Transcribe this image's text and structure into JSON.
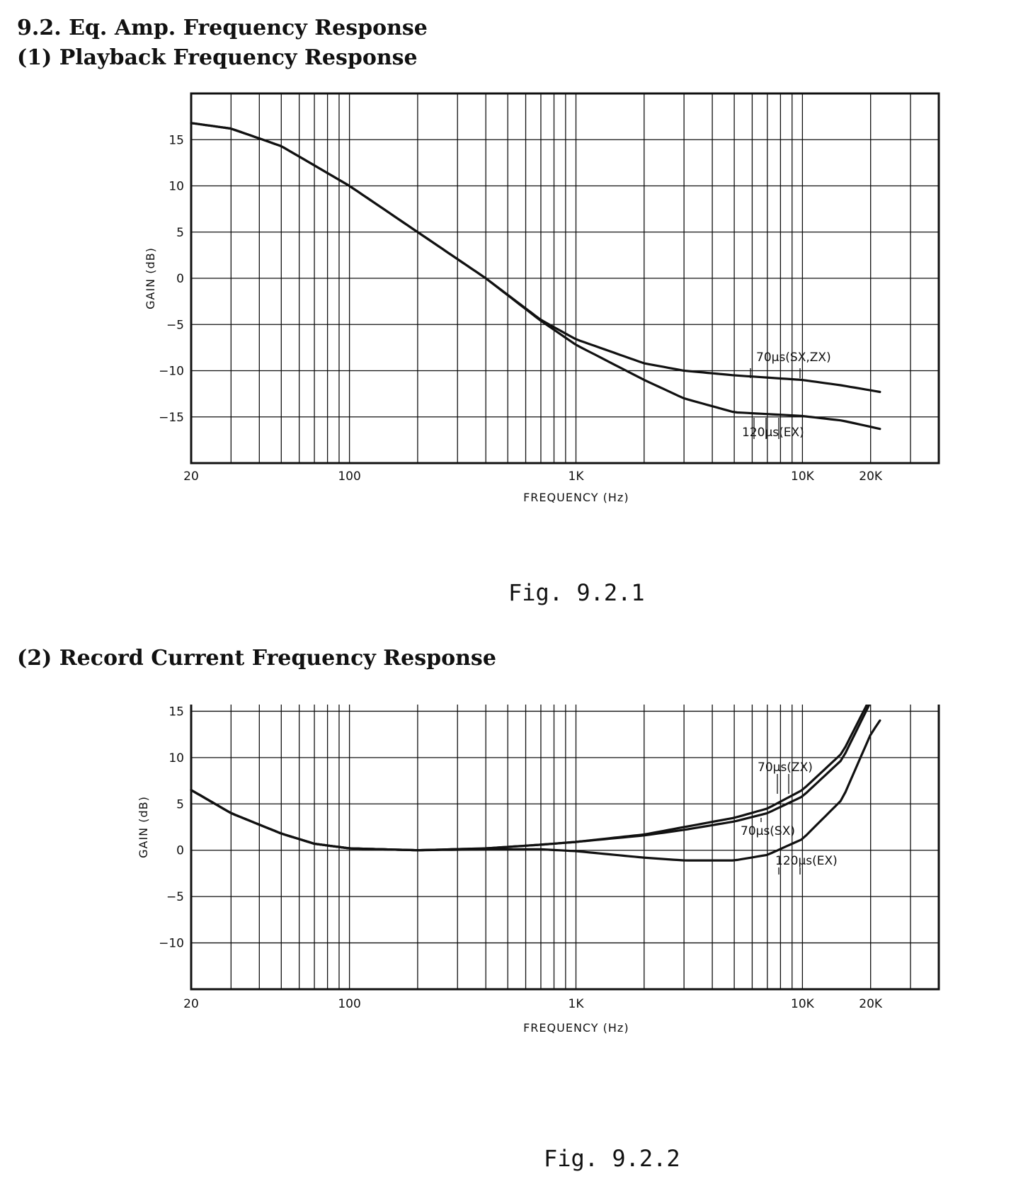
{
  "headings": {
    "section": "9.2. Eq. Amp. Frequency Response",
    "sub1": "(1) Playback Frequency Response",
    "sub2": "(2) Record Current Frequency Response"
  },
  "chart_data": [
    {
      "type": "line",
      "caption": "Fig. 9.2.1",
      "xlabel": "FREQUENCY (Hz)",
      "ylabel": "GAIN (dB)",
      "x_scale": "log",
      "xlim": [
        20,
        40000
      ],
      "ylim": [
        -20,
        20
      ],
      "grid": true,
      "x_ticks": [
        {
          "value": 20,
          "label": "20"
        },
        {
          "value": 100,
          "label": "100"
        },
        {
          "value": 1000,
          "label": "1K"
        },
        {
          "value": 10000,
          "label": "10K"
        },
        {
          "value": 20000,
          "label": "20K"
        }
      ],
      "y_ticks": [
        {
          "value": 15,
          "label": "15"
        },
        {
          "value": 10,
          "label": "10"
        },
        {
          "value": 5,
          "label": "5"
        },
        {
          "value": 0,
          "label": "0"
        },
        {
          "value": -5,
          "label": "−5"
        },
        {
          "value": -10,
          "label": "−10"
        },
        {
          "value": -15,
          "label": "−15"
        }
      ],
      "series": [
        {
          "name": "70µs(SX,ZX)",
          "x": [
            20,
            30,
            50,
            100,
            200,
            400,
            700,
            1000,
            2000,
            3000,
            5000,
            10000,
            15000,
            22000
          ],
          "y": [
            16.8,
            16.2,
            14.3,
            10,
            5,
            0,
            -4.5,
            -6.6,
            -9.2,
            -10,
            -10.5,
            -11,
            -11.6,
            -12.3
          ]
        },
        {
          "name": "120µs(EX)",
          "x": [
            20,
            30,
            50,
            100,
            200,
            400,
            700,
            1000,
            2000,
            3000,
            5000,
            10000,
            15000,
            22000
          ],
          "y": [
            16.8,
            16.2,
            14.3,
            10,
            5,
            0,
            -4.6,
            -7.2,
            -11,
            -13,
            -14.5,
            -14.9,
            -15.4,
            -16.3
          ]
        }
      ],
      "annotations": [
        {
          "series": "70µs(SX,ZX)",
          "text": "70µs(SX,ZX)"
        },
        {
          "series": "120µs(EX)",
          "text": "120µs(EX)"
        }
      ]
    },
    {
      "type": "line",
      "caption": "Fig. 9.2.2",
      "xlabel": "FREQUENCY (Hz)",
      "ylabel": "GAIN (dB)",
      "x_scale": "log",
      "xlim": [
        20,
        40000
      ],
      "ylim": [
        -15,
        20
      ],
      "grid": true,
      "x_ticks": [
        {
          "value": 20,
          "label": "20"
        },
        {
          "value": 100,
          "label": "100"
        },
        {
          "value": 1000,
          "label": "1K"
        },
        {
          "value": 10000,
          "label": "10K"
        },
        {
          "value": 20000,
          "label": "20K"
        }
      ],
      "y_ticks": [
        {
          "value": 15,
          "label": "15"
        },
        {
          "value": 10,
          "label": "10"
        },
        {
          "value": 5,
          "label": "5"
        },
        {
          "value": 0,
          "label": "0"
        },
        {
          "value": -5,
          "label": "−5"
        },
        {
          "value": -10,
          "label": "−10"
        }
      ],
      "series": [
        {
          "name": "70µs(ZX)",
          "x": [
            20,
            30,
            50,
            70,
            100,
            200,
            400,
            700,
            1000,
            2000,
            3000,
            5000,
            7000,
            10000,
            15000,
            20000,
            22000
          ],
          "y": [
            6.5,
            4,
            1.8,
            0.7,
            0.2,
            0,
            0.2,
            0.6,
            0.9,
            1.7,
            2.5,
            3.5,
            4.5,
            6.5,
            10.5,
            16.5,
            17.8
          ]
        },
        {
          "name": "70µs(SX)",
          "x": [
            20,
            30,
            50,
            70,
            100,
            200,
            400,
            700,
            1000,
            2000,
            3000,
            5000,
            7000,
            10000,
            15000,
            20000,
            22000
          ],
          "y": [
            6.5,
            4,
            1.8,
            0.7,
            0.2,
            0,
            0.2,
            0.6,
            0.9,
            1.6,
            2.2,
            3.1,
            4,
            5.8,
            9.8,
            16,
            17.8
          ]
        },
        {
          "name": "120µs(EX)",
          "x": [
            20,
            30,
            50,
            70,
            100,
            200,
            400,
            700,
            1000,
            2000,
            3000,
            5000,
            7000,
            10000,
            15000,
            20000,
            22000
          ],
          "y": [
            6.5,
            4,
            1.8,
            0.7,
            0.2,
            0,
            0.1,
            0.1,
            -0.1,
            -0.8,
            -1.1,
            -1.1,
            -0.5,
            1.2,
            5.5,
            12.5,
            14
          ]
        }
      ],
      "annotations": [
        {
          "series": "70µs(ZX)",
          "text": "70µs(ZX)"
        },
        {
          "series": "70µs(SX)",
          "text": "70µs(SX)"
        },
        {
          "series": "120µs(EX)",
          "text": "120µs(EX)"
        }
      ]
    }
  ]
}
